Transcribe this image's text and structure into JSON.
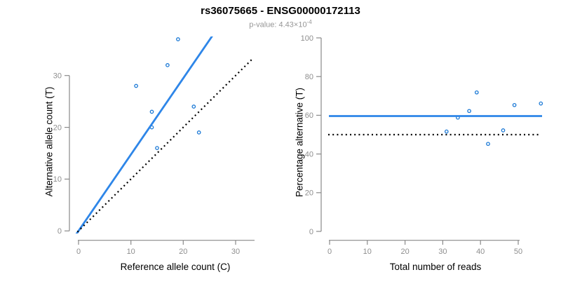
{
  "header": {
    "title": "rs36075665 - ENSG00000172113",
    "subtitle_text": "p-value: 4.43×10",
    "pvalue_exponent": "-4"
  },
  "colors": {
    "line_blue": "#2e86e8",
    "point_blue": "#1d7ad6",
    "dotted_black": "#000000",
    "axis_gray": "#8a8a8a",
    "tick_label_gray": "#8e8e8e",
    "title_black": "#000000",
    "subtitle_gray": "#969696"
  },
  "chart_data": [
    {
      "id": "allele-count-scatter",
      "type": "scatter",
      "xlabel": "Reference allele count (C)",
      "ylabel": "Alternative allele count (T)",
      "xticks": [
        0,
        10,
        20,
        30
      ],
      "yticks": [
        0,
        10,
        20,
        30
      ],
      "xlim": [
        0,
        33
      ],
      "ylim": [
        0,
        38
      ],
      "grid": false,
      "points": [
        [
          19,
          37
        ],
        [
          17,
          32
        ],
        [
          11,
          28
        ],
        [
          14,
          23
        ],
        [
          22,
          24
        ],
        [
          14,
          20
        ],
        [
          23,
          19
        ],
        [
          15,
          16
        ]
      ],
      "lines": [
        {
          "name": "fitted-allelic-ratio-line",
          "slope": 1.474,
          "intercept": 0,
          "style": "solid",
          "color": "line_blue"
        },
        {
          "name": "identity-line",
          "slope": 1,
          "intercept": 0,
          "style": "dotted",
          "color": "dotted_black"
        }
      ]
    },
    {
      "id": "percentage-reads-scatter",
      "type": "scatter",
      "xlabel": "Total number of reads",
      "ylabel": "Percentage alternative (T)",
      "xticks": [
        0,
        10,
        20,
        30,
        40,
        50
      ],
      "yticks": [
        0,
        20,
        40,
        60,
        80,
        100
      ],
      "xlim": [
        0,
        56
      ],
      "ylim": [
        0,
        100
      ],
      "grid": false,
      "points": [
        [
          56,
          66.1
        ],
        [
          49,
          65.3
        ],
        [
          39,
          71.8
        ],
        [
          37,
          62.2
        ],
        [
          34,
          58.8
        ],
        [
          46,
          52.2
        ],
        [
          42,
          45.2
        ],
        [
          31,
          51.6
        ]
      ],
      "hlines": [
        {
          "name": "mean-percentage-line",
          "value": 59.6,
          "style": "solid",
          "color": "line_blue"
        },
        {
          "name": "fifty-percent-line",
          "value": 50,
          "style": "dotted",
          "color": "dotted_black"
        }
      ]
    }
  ]
}
